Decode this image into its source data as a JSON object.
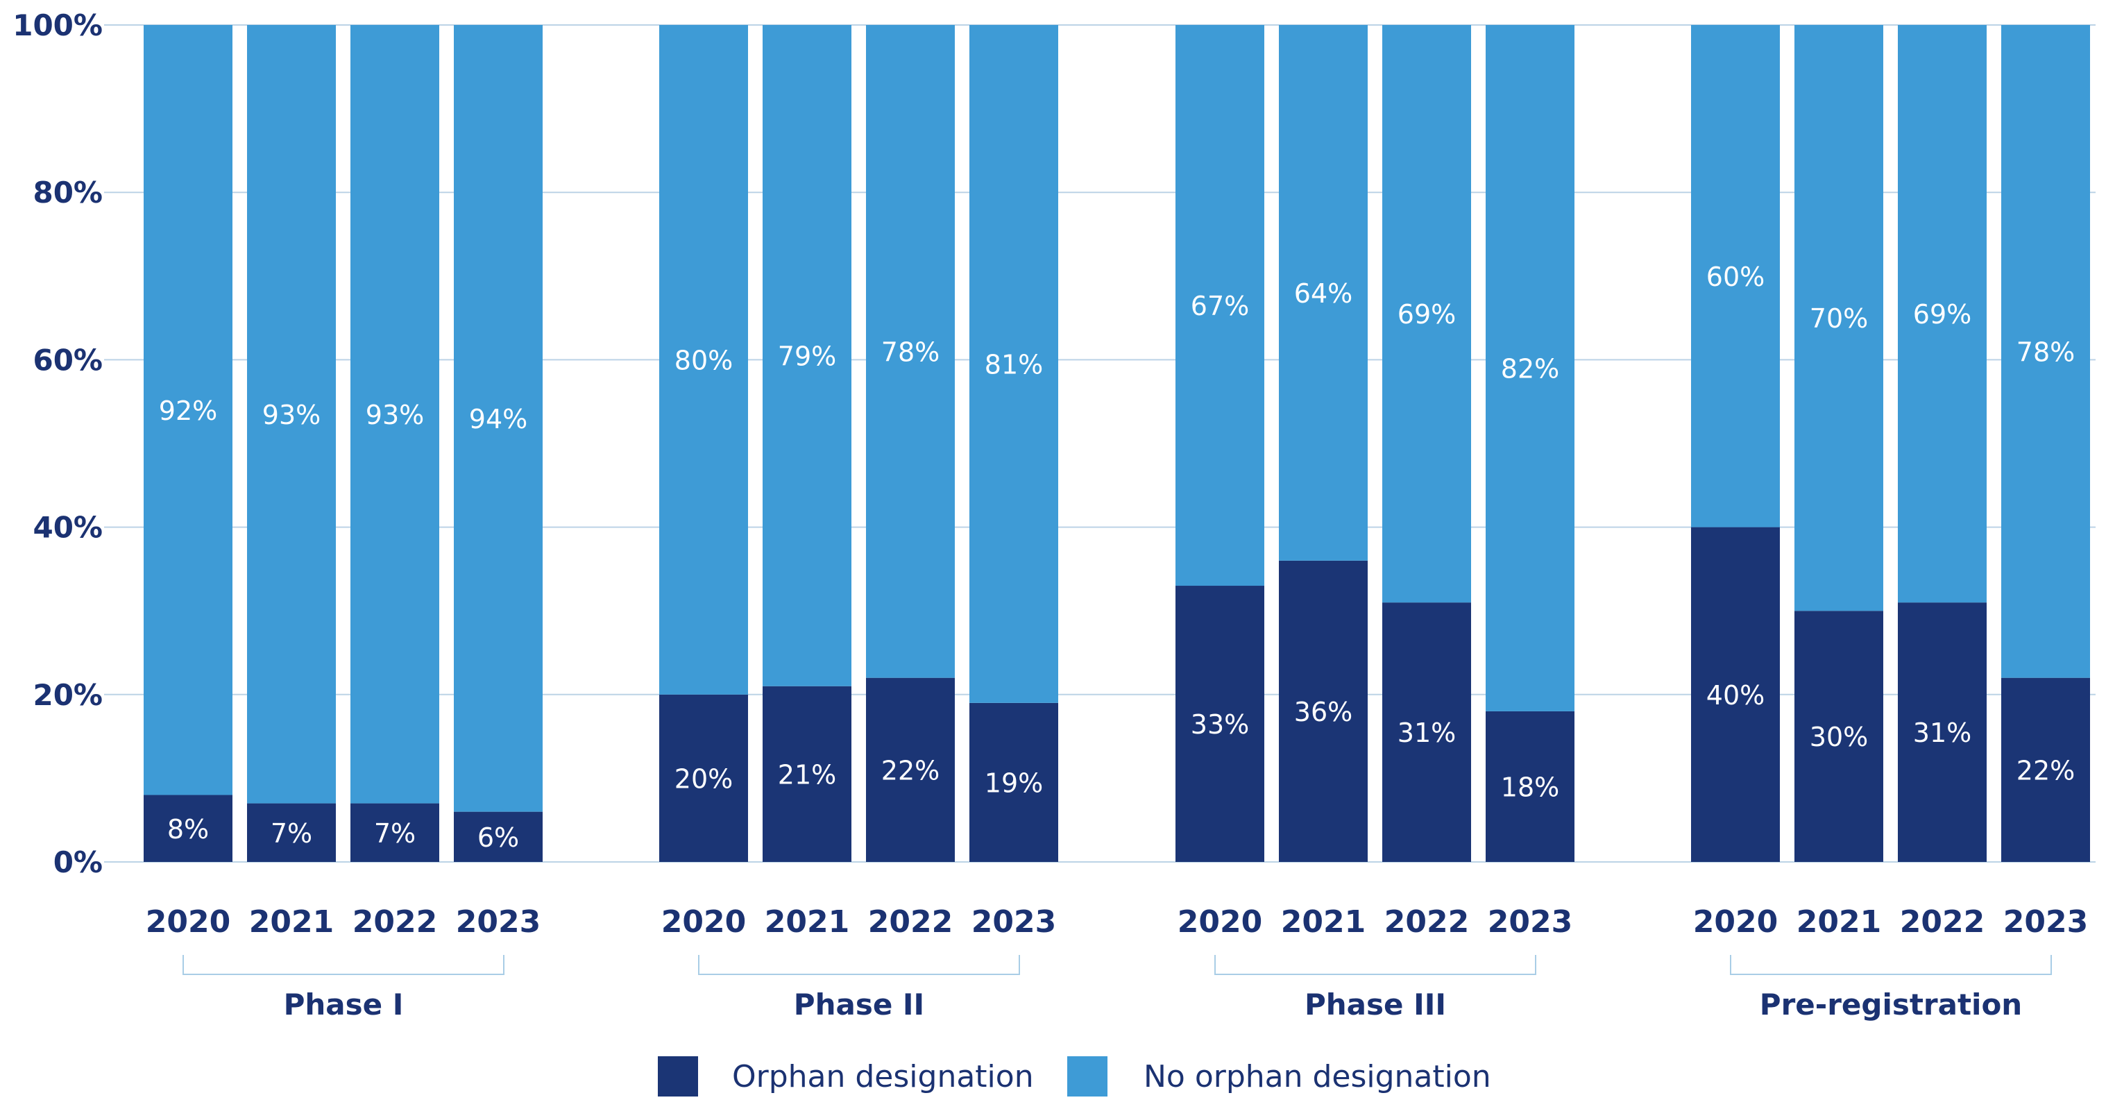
{
  "chart_data": {
    "type": "bar",
    "stacked": true,
    "ylim": [
      0,
      100
    ],
    "y_ticks": [
      "0%",
      "20%",
      "40%",
      "60%",
      "80%",
      "100%"
    ],
    "groups": [
      {
        "name": "Phase I",
        "categories": [
          "2020",
          "2021",
          "2022",
          "2023"
        ]
      },
      {
        "name": "Phase II",
        "categories": [
          "2020",
          "2021",
          "2022",
          "2023"
        ]
      },
      {
        "name": "Phase III",
        "categories": [
          "2020",
          "2021",
          "2022",
          "2023"
        ]
      },
      {
        "name": "Pre-registration",
        "categories": [
          "2020",
          "2021",
          "2022",
          "2023"
        ]
      }
    ],
    "series": [
      {
        "name": "Orphan designation",
        "color": "#1b3575",
        "values": [
          [
            8,
            7,
            7,
            6
          ],
          [
            20,
            21,
            22,
            19
          ],
          [
            33,
            36,
            31,
            18
          ],
          [
            40,
            30,
            31,
            22
          ]
        ],
        "labels": [
          [
            "8%",
            "7%",
            "7%",
            "6%"
          ],
          [
            "20%",
            "21%",
            "22%",
            "19%"
          ],
          [
            "33%",
            "36%",
            "31%",
            "18%"
          ],
          [
            "40%",
            "30%",
            "31%",
            "22%"
          ]
        ]
      },
      {
        "name": "No orphan designation",
        "color": "#3e9bd6",
        "values": [
          [
            92,
            93,
            93,
            94
          ],
          [
            80,
            79,
            78,
            81
          ],
          [
            67,
            64,
            69,
            82
          ],
          [
            60,
            70,
            69,
            78
          ]
        ],
        "labels": [
          [
            "92%",
            "93%",
            "93%",
            "94%"
          ],
          [
            "80%",
            "79%",
            "78%",
            "81%"
          ],
          [
            "67%",
            "64%",
            "69%",
            "82%"
          ],
          [
            "60%",
            "70%",
            "69%",
            "78%"
          ]
        ]
      }
    ],
    "legend_position": "bottom-center"
  }
}
